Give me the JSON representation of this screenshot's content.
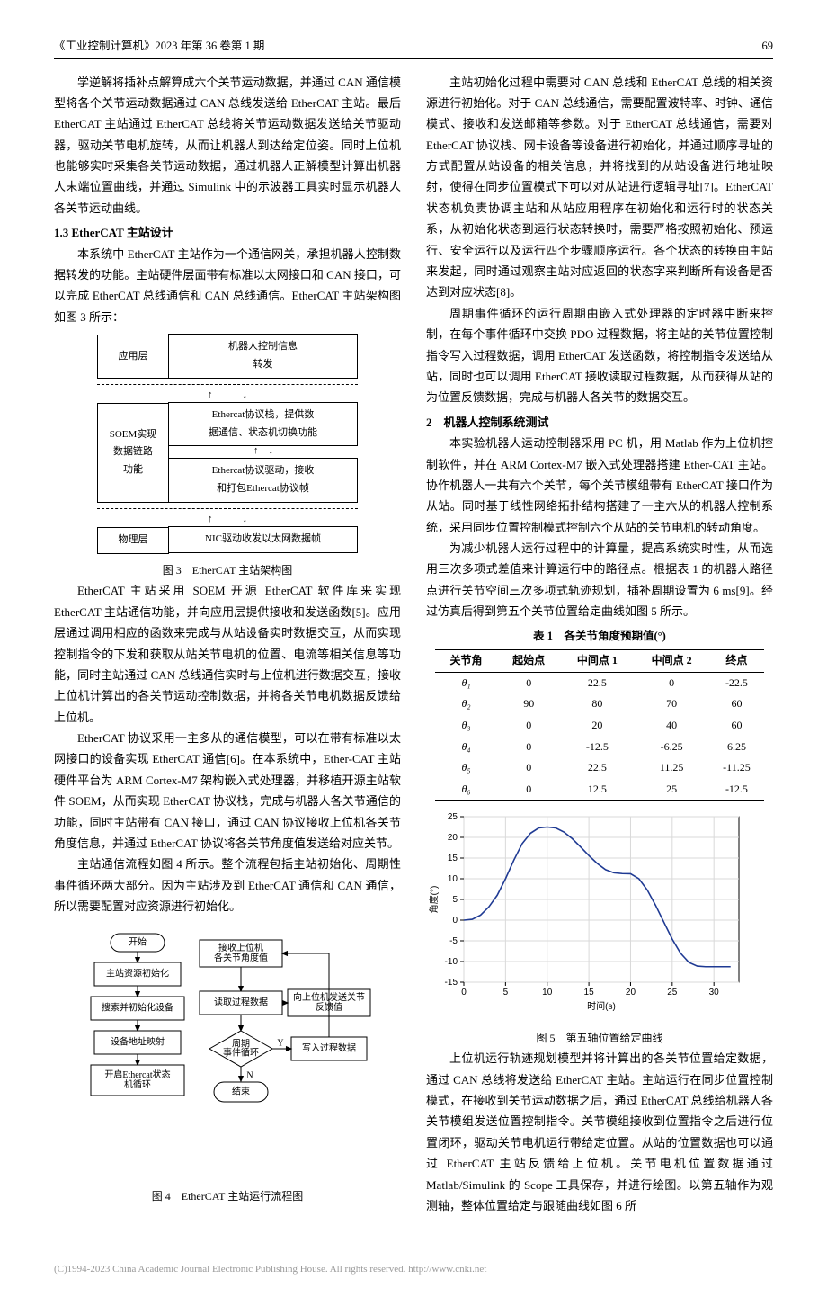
{
  "header": {
    "journal": "《工业控制计算机》2023 年第 36 卷第 1 期",
    "page": "69"
  },
  "left": {
    "p1": "学逆解将插补点解算成六个关节运动数据，并通过 CAN 通信模型将各个关节运动数据通过 CAN 总线发送给 EtherCAT 主站。最后 EtherCAT 主站通过 EtherCAT 总线将关节运动数据发送给关节驱动器，驱动关节电机旋转，从而让机器人到达给定位姿。同时上位机也能够实时采集各关节运动数据，通过机器人正解模型计算出机器人末端位置曲线，并通过 Simulink 中的示波器工具实时显示机器人各关节运动曲线。",
    "s13": "1.3 EtherCAT 主站设计",
    "p2": "本系统中 EtherCAT 主站作为一个通信网关，承担机器人控制数据转发的功能。主站硬件层面带有标准以太网接口和 CAN 接口，可以完成 EtherCAT 总线通信和 CAN 总线通信。EtherCAT 主站架构图如图 3 所示：",
    "fig3": {
      "caption": "图 3　EtherCAT 主站架构图",
      "app_layer": "应用层",
      "app_box": "机器人控制信息\n转发",
      "soem_layer": "SOEM实现\n数据链路\n功能",
      "proto_box": "Ethercat协议栈，提供数\n据通信、状态机切换功能",
      "drv_box": "Ethercat协议驱动，接收\n和打包Ethercat协议帧",
      "phy_layer": "物理层",
      "nic_box": "NIC驱动收发以太网数据帧"
    },
    "p3": "EtherCAT 主站采用 SOEM 开源 EtherCAT 软件库来实现 EtherCAT 主站通信功能，并向应用层提供接收和发送函数[5]。应用层通过调用相应的函数来完成与从站设备实时数据交互，从而实现控制指令的下发和获取从站关节电机的位置、电流等相关信息等功能，同时主站通过 CAN 总线通信实时与上位机进行数据交互，接收上位机计算出的各关节运动控制数据，并将各关节电机数据反馈给上位机。",
    "p4": "EtherCAT 协议采用一主多从的通信模型，可以在带有标准以太网接口的设备实现 EtherCAT 通信[6]。在本系统中，Ether-CAT 主站硬件平台为 ARM Cortex-M7 架构嵌入式处理器，并移植开源主站软件 SOEM，从而实现 EtherCAT 协议栈，完成与机器人各关节通信的功能，同时主站带有 CAN 接口，通过 CAN 协议接收上位机各关节角度信息，并通过 EtherCAT 协议将各关节角度值发送给对应关节。",
    "p5": "主站通信流程如图 4 所示。整个流程包括主站初始化、周期性事件循环两大部分。因为主站涉及到 EtherCAT 通信和 CAN 通信，所以需要配置对应资源进行初始化。",
    "fig4": {
      "caption": "图 4　EtherCAT 主站运行流程图",
      "start": "开始",
      "init": "主站资源初始化",
      "search": "搜索并初始化设备",
      "map": "设备地址映射",
      "sm": "开启Ethercat状态\n机循环",
      "recv": "接收上位机\n各关节角度值",
      "read": "读取过程数据",
      "fb": "向上位机发送关节\n反馈值",
      "cycle": "周期\n事件循环",
      "write": "写入过程数据",
      "end": "结束",
      "y": "Y",
      "n": "N"
    }
  },
  "right": {
    "p1": "主站初始化过程中需要对 CAN 总线和 EtherCAT 总线的相关资源进行初始化。对于 CAN 总线通信，需要配置波特率、时钟、通信模式、接收和发送邮箱等参数。对于 EtherCAT 总线通信，需要对 EtherCAT 协议栈、网卡设备等设备进行初始化，并通过顺序寻址的方式配置从站设备的相关信息，并将找到的从站设备进行地址映射，使得在同步位置模式下可以对从站进行逻辑寻址[7]。EtherCAT 状态机负责协调主站和从站应用程序在初始化和运行时的状态关系，从初始化状态到运行状态转换时，需要严格按照初始化、预运行、安全运行以及运行四个步骤顺序运行。各个状态的转换由主站来发起，同时通过观察主站对应返回的状态字来判断所有设备是否达到对应状态[8]。",
    "p2": "周期事件循环的运行周期由嵌入式处理器的定时器中断来控制，在每个事件循环中交换 PDO 过程数据，将主站的关节位置控制指令写入过程数据，调用 EtherCAT 发送函数，将控制指令发送给从站，同时也可以调用 EtherCAT 接收读取过程数据，从而获得从站的为位置反馈数据，完成与机器人各关节的数据交互。",
    "s2": "2　机器人控制系统测试",
    "p3": "本实验机器人运动控制器采用 PC 机，用 Matlab 作为上位机控制软件，并在 ARM Cortex-M7 嵌入式处理器搭建 Ether-CAT 主站。协作机器人一共有六个关节，每个关节模组带有 EtherCAT 接口作为从站。同时基于线性网络拓扑结构搭建了一主六从的机器人控制系统，采用同步位置控制模式控制六个从站的关节电机的转动角度。",
    "p4": "为减少机器人运行过程中的计算量，提高系统实时性，从而选用三次多项式差值来计算运行中的路径点。根据表 1 的机器人路径点进行关节空间三次多项式轨迹规划，插补周期设置为 6 ms[9]。经过仿真后得到第五个关节位置给定曲线如图 5 所示。",
    "table1": {
      "caption": "表 1　各关节角度预期值(°)",
      "columns": [
        "关节角",
        "起始点",
        "中间点 1",
        "中间点 2",
        "终点"
      ],
      "rows": [
        [
          "θ₁",
          "0",
          "22.5",
          "0",
          "-22.5"
        ],
        [
          "θ₂",
          "90",
          "80",
          "70",
          "60"
        ],
        [
          "θ₃",
          "0",
          "20",
          "40",
          "60"
        ],
        [
          "θ₄",
          "0",
          "-12.5",
          "-6.25",
          "6.25"
        ],
        [
          "θ₅",
          "0",
          "22.5",
          "11.25",
          "-11.25"
        ],
        [
          "θ₆",
          "0",
          "12.5",
          "25",
          "-12.5"
        ]
      ]
    },
    "fig5": {
      "caption": "图 5　第五轴位置给定曲线",
      "xlabel": "时间(s)",
      "ylabel": "角度(°)",
      "xlim": [
        0,
        33
      ],
      "ylim": [
        -15,
        25
      ],
      "xticks": [
        0,
        5,
        10,
        15,
        20,
        25,
        30
      ],
      "yticks": [
        -15,
        -10,
        -5,
        0,
        5,
        10,
        15,
        20,
        25
      ],
      "line_color": "#1f3a93",
      "grid_color": "#d9d9d9",
      "bg": "#ffffff",
      "points": [
        [
          0,
          0
        ],
        [
          1,
          0.2
        ],
        [
          2,
          1.2
        ],
        [
          3,
          3.2
        ],
        [
          4,
          6
        ],
        [
          5,
          10
        ],
        [
          6,
          14.5
        ],
        [
          7,
          18.5
        ],
        [
          8,
          21
        ],
        [
          9,
          22.3
        ],
        [
          10,
          22.5
        ],
        [
          11,
          22.3
        ],
        [
          12,
          21.3
        ],
        [
          13,
          19.7
        ],
        [
          14,
          17.7
        ],
        [
          15,
          15.6
        ],
        [
          16,
          13.7
        ],
        [
          17,
          12.2
        ],
        [
          18,
          11.45
        ],
        [
          19,
          11.25
        ],
        [
          20,
          11.2
        ],
        [
          21,
          10
        ],
        [
          22,
          7.3
        ],
        [
          23,
          3.6
        ],
        [
          24,
          -0.5
        ],
        [
          25,
          -4.6
        ],
        [
          26,
          -8
        ],
        [
          27,
          -10.2
        ],
        [
          28,
          -11.1
        ],
        [
          29,
          -11.25
        ],
        [
          30,
          -11.25
        ],
        [
          32,
          -11.25
        ]
      ]
    },
    "p5": "上位机运行轨迹规划模型并将计算出的各关节位置给定数据，通过 CAN 总线将发送给 EtherCAT 主站。主站运行在同步位置控制模式，在接收到关节运动数据之后，通过 EtherCAT 总线给机器人各关节模组发送位置控制指令。关节模组接收到位置指令之后进行位置闭环，驱动关节电机运行带给定位置。从站的位置数据也可以通过 EtherCAT 主站反馈给上位机。关节电机位置数据通过 Matlab/Simulink 的 Scope 工具保存，并进行绘图。以第五轴作为观测轴，整体位置给定与跟随曲线如图 6 所"
  },
  "footer": "(C)1994-2023 China Academic Journal Electronic Publishing House. All rights reserved.    http://www.cnki.net"
}
